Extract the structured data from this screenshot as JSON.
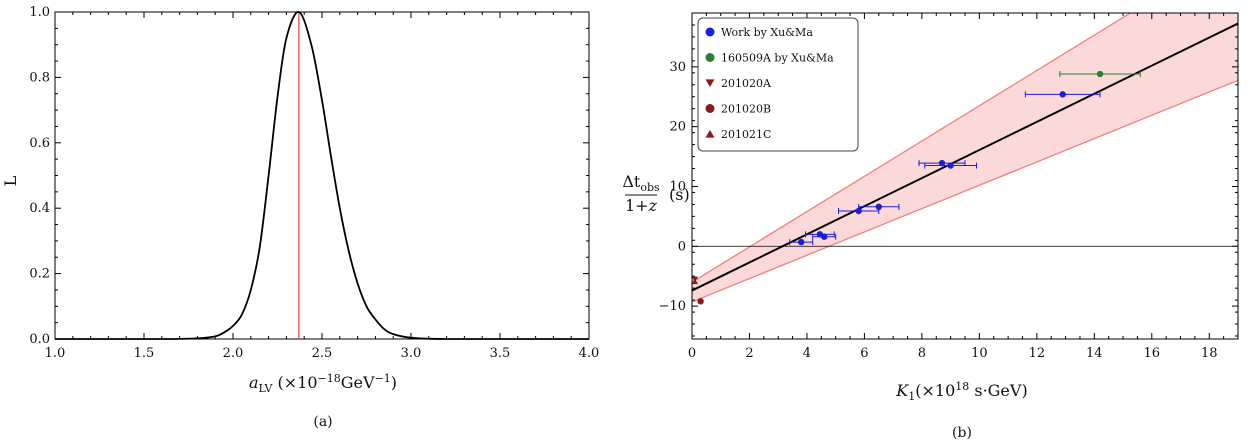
{
  "chart_data": [
    {
      "type": "line",
      "caption": "(a)",
      "xlabel": "a_LV (×10^−18 GeV^−1)",
      "ylabel": "L",
      "xlim": [
        1.0,
        4.0
      ],
      "ylim": [
        0.0,
        1.0
      ],
      "xticks": [
        "1.0",
        "1.5",
        "2.0",
        "2.5",
        "3.0",
        "3.5",
        "4.0"
      ],
      "yticks": [
        "0.0",
        "0.2",
        "0.4",
        "0.6",
        "0.8",
        "1.0"
      ],
      "peak_x": 2.37,
      "colors": {
        "curve": "#000000",
        "peak_line": "#e04040"
      },
      "series": [
        {
          "x": [
            1.0,
            1.6,
            1.8,
            1.9,
            1.95,
            2.0,
            2.05,
            2.1,
            2.15,
            2.2,
            2.25,
            2.3,
            2.37,
            2.44,
            2.5,
            2.55,
            2.6,
            2.65,
            2.7,
            2.75,
            2.8,
            2.85,
            2.9,
            3.0,
            3.2,
            4.0
          ],
          "y": [
            0.0,
            0.0,
            0.002,
            0.008,
            0.02,
            0.04,
            0.075,
            0.15,
            0.28,
            0.5,
            0.74,
            0.92,
            1.0,
            0.9,
            0.73,
            0.56,
            0.4,
            0.27,
            0.17,
            0.1,
            0.06,
            0.03,
            0.015,
            0.004,
            0.0,
            0.0
          ]
        }
      ]
    },
    {
      "type": "scatter",
      "caption": "(b)",
      "xlabel": "K₁(×10¹⁸ s·GeV)",
      "ylabel_num": "Δt_obs",
      "ylabel_den": "1+z",
      "ylabel_unit": "(s)",
      "xlim": [
        0,
        19
      ],
      "ylim": [
        -15.5,
        39
      ],
      "xticks": [
        "0",
        "2",
        "4",
        "6",
        "8",
        "10",
        "12",
        "14",
        "16",
        "18"
      ],
      "yticks": [
        "−10",
        "0",
        "10",
        "20",
        "30"
      ],
      "ytick_values": [
        -10,
        0,
        10,
        20,
        30
      ],
      "fit": {
        "slope": 2.35,
        "intercept": -7.4
      },
      "band_upper": {
        "slope": 2.95,
        "intercept": -6.0
      },
      "band_lower": {
        "slope": 1.95,
        "intercept": -9.3
      },
      "colors": {
        "fit": "#000000",
        "band_fill": "#fbd9d9",
        "band_edge": "#f08080",
        "xu_ma": "#1c1cdc",
        "green": "#2e7d32",
        "dark_red": "#8b1a1a"
      },
      "legend_position": "top-left",
      "series": [
        {
          "name": "Work by Xu&Ma",
          "marker": "circle",
          "color": "#1c1cdc",
          "points": [
            {
              "x": 3.8,
              "y": 0.7,
              "xerr": 0.4
            },
            {
              "x": 4.45,
              "y": 2.0,
              "xerr": 0.5
            },
            {
              "x": 4.6,
              "y": 1.6,
              "xerr": 0.4
            },
            {
              "x": 5.8,
              "y": 5.9,
              "xerr": 0.7
            },
            {
              "x": 6.5,
              "y": 6.6,
              "xerr": 0.7
            },
            {
              "x": 8.7,
              "y": 13.9,
              "xerr": 0.8
            },
            {
              "x": 9.0,
              "y": 13.5,
              "xerr": 0.9
            },
            {
              "x": 12.9,
              "y": 25.4,
              "xerr": 1.3
            }
          ]
        },
        {
          "name": "160509A by Xu&Ma",
          "marker": "circle",
          "color": "#2e7d32",
          "points": [
            {
              "x": 14.2,
              "y": 28.8,
              "xerr": 1.4
            }
          ]
        },
        {
          "name": "201020A",
          "marker": "triangle-down",
          "color": "#8b1a1a",
          "points": [
            {
              "x": 0.1,
              "y": -5.5
            }
          ]
        },
        {
          "name": "201020B",
          "marker": "circle",
          "color": "#8b1a1a",
          "points": [
            {
              "x": 0.3,
              "y": -9.2
            }
          ]
        },
        {
          "name": "201021C",
          "marker": "triangle-up",
          "color": "#8b1a1a",
          "points": [
            {
              "x": 0.1,
              "y": -5.9
            }
          ]
        }
      ]
    }
  ]
}
